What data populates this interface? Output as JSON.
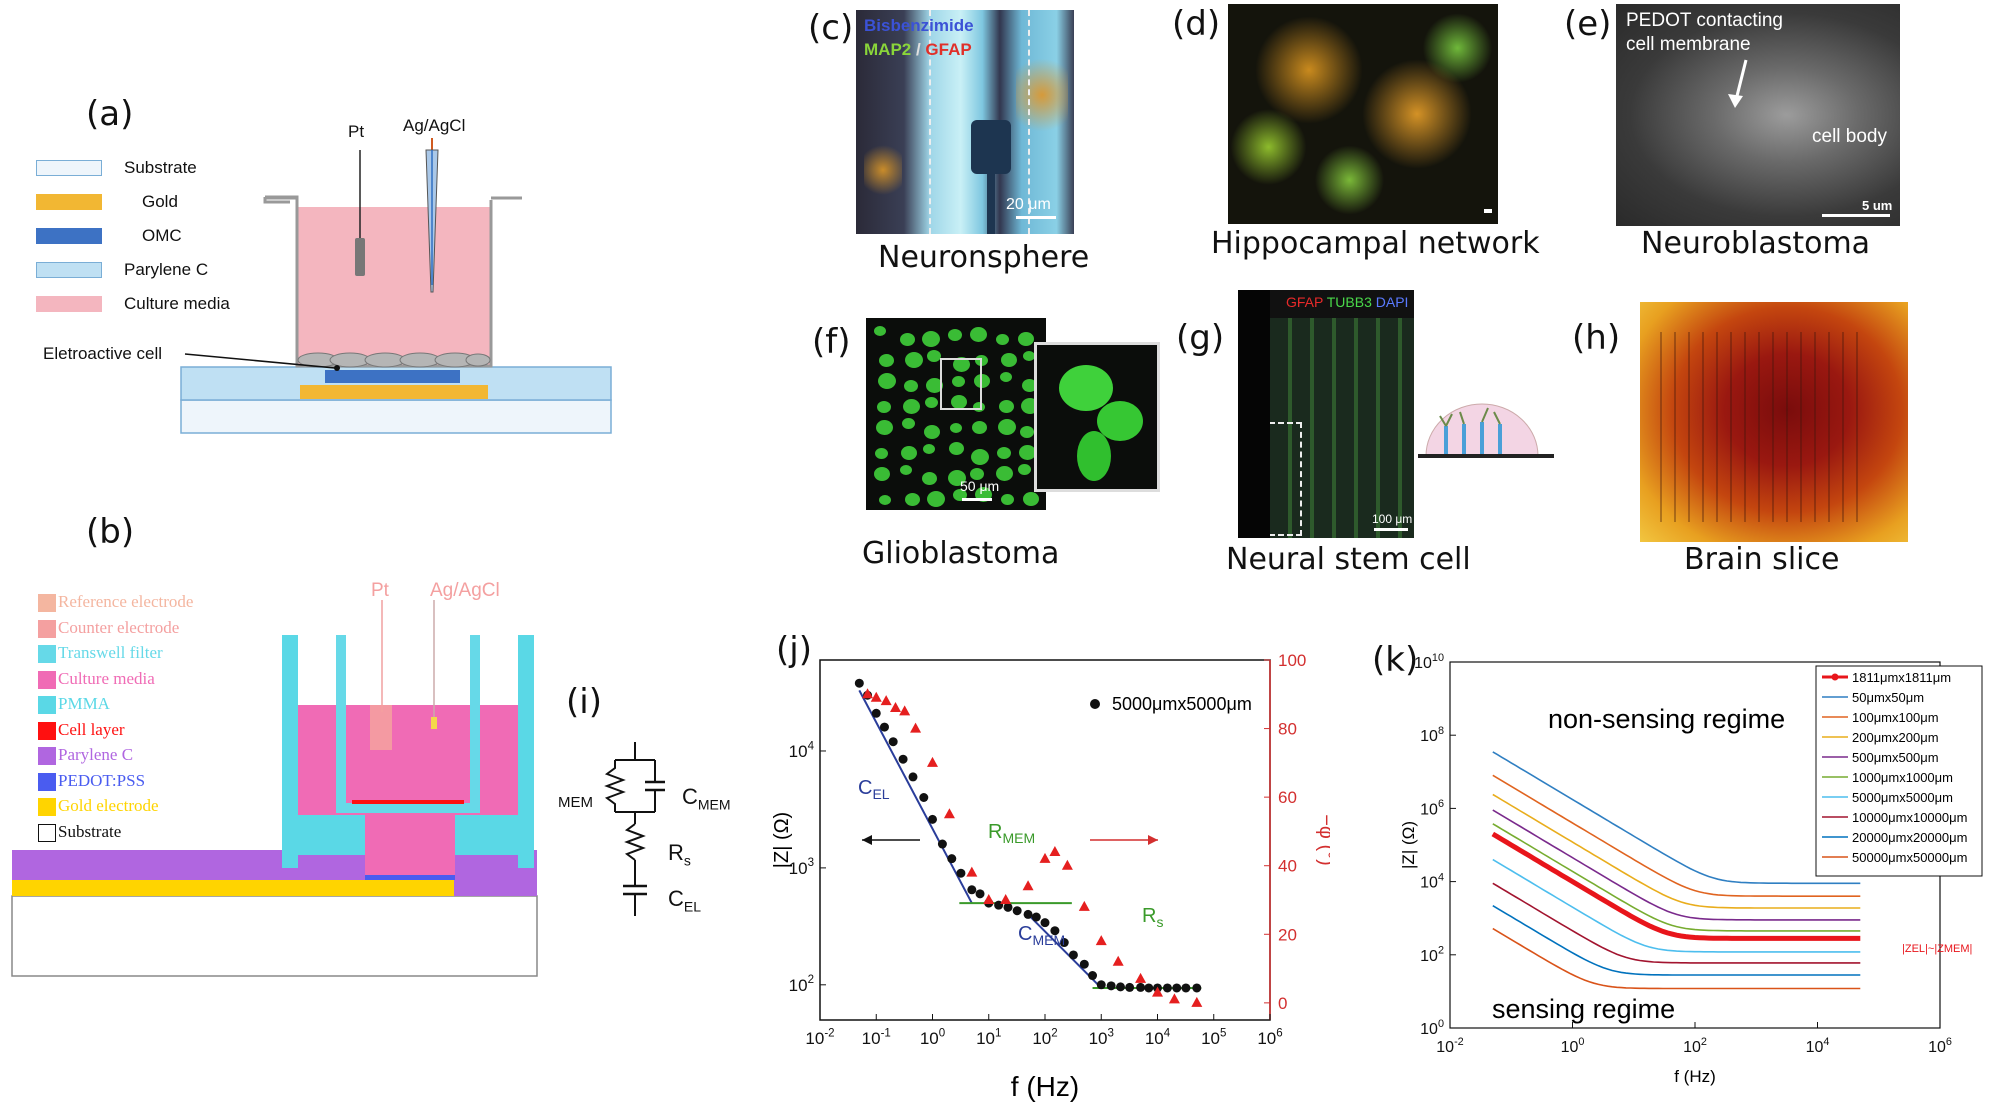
{
  "panels": {
    "a": {
      "label": "(a)",
      "legend": [
        {
          "name": "Substrate",
          "color": "#eef5fb",
          "border": "#7aaed6"
        },
        {
          "name": "Gold",
          "color": "#f2b733",
          "border": "#f2b733"
        },
        {
          "name": "OMC",
          "color": "#3d72c4",
          "border": "#3d72c4"
        },
        {
          "name": "Parylene C",
          "color": "#bfe0f3",
          "border": "#7aaed6"
        },
        {
          "name": "Culture media",
          "color": "#f4b6bf",
          "border": "#f4b6bf"
        }
      ],
      "pt_label": "Pt",
      "ref_label": "Ag/AgCl",
      "cell_label": "Eletroactive cell"
    },
    "b": {
      "label": "(b)",
      "legend": [
        {
          "name": "Reference electrode",
          "color": "#f4b6a0"
        },
        {
          "name": "Counter electrode",
          "color": "#f4a0a0"
        },
        {
          "name": "Transwell filter",
          "color": "#66d9e8"
        },
        {
          "name": "Culture media",
          "color": "#f06bb5"
        },
        {
          "name": "PMMA",
          "color": "#5ad8e6"
        },
        {
          "name": "Cell layer",
          "color": "#ff1010"
        },
        {
          "name": "Parylene C",
          "color": "#b066e0"
        },
        {
          "name": "PEDOT:PSS",
          "color": "#4a5cf0"
        },
        {
          "name": "Gold electrode",
          "color": "#ffd400"
        },
        {
          "name": "Substrate",
          "color": "#ffffff"
        }
      ],
      "pt_label": "Pt",
      "ref_label": "Ag/AgCl"
    },
    "c": {
      "label": "(c)",
      "caption": "Neuronsphere",
      "stain1": "Bisbenzimide",
      "stain2": "MAP2",
      "stain_sep": " / ",
      "stain3": "GFAP",
      "scale": "20 μm"
    },
    "d": {
      "label": "(d)",
      "caption": "Hippocampal network"
    },
    "e": {
      "label": "(e)",
      "caption": "Neuroblastoma",
      "note1": "PEDOT contacting",
      "note2": "cell membrane",
      "note3": "cell body",
      "scale": "5 um"
    },
    "f": {
      "label": "(f)",
      "caption": "Glioblastoma",
      "scale": "50 μm"
    },
    "g": {
      "label": "(g)",
      "caption": "Neural stem cell",
      "stain1": "GFAP",
      "stain2": "TUBB3",
      "stain3": "DAPI",
      "scale": "100 μm"
    },
    "h": {
      "label": "(h)",
      "caption": "Brain slice"
    },
    "i": {
      "label": "(i)",
      "r_mem": "MEM",
      "c_mem": "C",
      "c_mem_sub": "MEM",
      "r_s": "R",
      "r_s_sub": "s",
      "c_el": "C",
      "c_el_sub": "EL"
    },
    "j": {
      "label": "(j)"
    },
    "k": {
      "label": "(k)"
    }
  },
  "chart_data": [
    {
      "type": "scatter",
      "panel": "j",
      "xlabel": "f (Hz)",
      "ylabel": "|Z| (Ω)",
      "y2label": "−φ (°)",
      "x_scale": "log",
      "y_scale": "log",
      "xlim": [
        0.01,
        1000000
      ],
      "ylim": [
        50,
        60000
      ],
      "y2lim": [
        -5,
        100
      ],
      "xticks": [
        {
          "v": 0.01,
          "b": "10",
          "e": "-2"
        },
        {
          "v": 0.1,
          "b": "10",
          "e": "-1"
        },
        {
          "v": 1,
          "b": "10",
          "e": "0"
        },
        {
          "v": 10,
          "b": "10",
          "e": "1"
        },
        {
          "v": 100,
          "b": "10",
          "e": "2"
        },
        {
          "v": 1000,
          "b": "10",
          "e": "3"
        },
        {
          "v": 10000,
          "b": "10",
          "e": "4"
        },
        {
          "v": 100000,
          "b": "10",
          "e": "5"
        },
        {
          "v": 1000000,
          "b": "10",
          "e": "6"
        }
      ],
      "yticks": [
        {
          "v": 100,
          "b": "10",
          "e": "2"
        },
        {
          "v": 1000,
          "b": "10",
          "e": "3"
        },
        {
          "v": 10000,
          "b": "10",
          "e": "4"
        }
      ],
      "y2ticks": [
        "0",
        "20",
        "40",
        "60",
        "80",
        "100"
      ],
      "legend": "5000μmx5000μm",
      "legend_position": "top-right",
      "impedance": {
        "x": [
          0.05,
          0.07,
          0.1,
          0.14,
          0.2,
          0.3,
          0.45,
          0.7,
          1,
          1.5,
          2.2,
          3.2,
          5,
          7,
          10,
          15,
          22,
          32,
          50,
          70,
          100,
          150,
          220,
          320,
          500,
          700,
          1000,
          1500,
          2200,
          3200,
          5000,
          7000,
          10000,
          15000,
          22000,
          32000,
          50000
        ],
        "y": [
          38000,
          30000,
          21000,
          16000,
          12000,
          8500,
          6000,
          4000,
          2600,
          1600,
          1200,
          900,
          650,
          600,
          500,
          480,
          460,
          430,
          400,
          380,
          340,
          290,
          230,
          180,
          150,
          120,
          100,
          98,
          96,
          95,
          95,
          94,
          94,
          94,
          94,
          94,
          94
        ]
      },
      "phase": {
        "x": [
          0.07,
          0.1,
          0.15,
          0.22,
          0.32,
          0.5,
          1,
          2,
          5,
          10,
          20,
          50,
          100,
          150,
          250,
          500,
          1000,
          2000,
          5000,
          10000,
          20000,
          50000
        ],
        "y": [
          90,
          89,
          88,
          86,
          85,
          80,
          70,
          55,
          38,
          30,
          30,
          34,
          42,
          44,
          40,
          28,
          18,
          12,
          7,
          3,
          1,
          0
        ]
      },
      "annotations": {
        "c_el": {
          "main": "C",
          "sub": "EL"
        },
        "r_mem": {
          "main": "R",
          "sub": "MEM"
        },
        "c_mem": {
          "main": "C",
          "sub": "MEM"
        },
        "r_s": {
          "main": "R",
          "sub": "s"
        }
      }
    },
    {
      "type": "line",
      "panel": "k",
      "xlabel": "f (Hz)",
      "ylabel": "|Z| (Ω)",
      "x_scale": "log",
      "y_scale": "log",
      "xlim": [
        0.01,
        1000000
      ],
      "ylim": [
        1,
        10000000000
      ],
      "xticks": [
        {
          "v": 0.01,
          "b": "10",
          "e": "-2"
        },
        {
          "v": 1,
          "b": "10",
          "e": "0"
        },
        {
          "v": 100,
          "b": "10",
          "e": "2"
        },
        {
          "v": 10000,
          "b": "10",
          "e": "4"
        },
        {
          "v": 1000000,
          "b": "10",
          "e": "6"
        }
      ],
      "yticks": [
        {
          "v": 1,
          "b": "10",
          "e": "0"
        },
        {
          "v": 100,
          "b": "10",
          "e": "2"
        },
        {
          "v": 10000,
          "b": "10",
          "e": "4"
        },
        {
          "v": 1000000,
          "b": "10",
          "e": "6"
        },
        {
          "v": 100000000,
          "b": "10",
          "e": "8"
        },
        {
          "v": 10000000000,
          "b": "10",
          "e": "10"
        }
      ],
      "annotation_top": "non-sensing regime",
      "annotation_bottom": "sensing regime",
      "side_label": "|ZEL|~|ZMEM|",
      "legend_position": "top-right",
      "series": [
        {
          "name": "1811μmx1811μm",
          "color": "#e8151b",
          "z0": 200000,
          "zinf": 280,
          "thick": true
        },
        {
          "name": "50μmx50μm",
          "color": "#2f7fc2",
          "z0": 35000000,
          "zinf": 9000
        },
        {
          "name": "100μmx100μm",
          "color": "#e06420",
          "z0": 8000000,
          "zinf": 4000
        },
        {
          "name": "200μmx200μm",
          "color": "#e9ad1c",
          "z0": 2400000,
          "zinf": 1900
        },
        {
          "name": "500μmx500μm",
          "color": "#7a2a8c",
          "z0": 900000,
          "zinf": 900
        },
        {
          "name": "1000μmx1000μm",
          "color": "#77ac30",
          "z0": 380000,
          "zinf": 450
        },
        {
          "name": "5000μmx5000μm",
          "color": "#4dbeee",
          "z0": 40000,
          "zinf": 120
        },
        {
          "name": "10000μmx10000μm",
          "color": "#a2142f",
          "z0": 9000,
          "zinf": 60
        },
        {
          "name": "20000μmx20000μm",
          "color": "#0072bd",
          "z0": 2200,
          "zinf": 28
        },
        {
          "name": "50000μmx50000μm",
          "color": "#d95319",
          "z0": 520,
          "zinf": 12
        }
      ]
    }
  ]
}
